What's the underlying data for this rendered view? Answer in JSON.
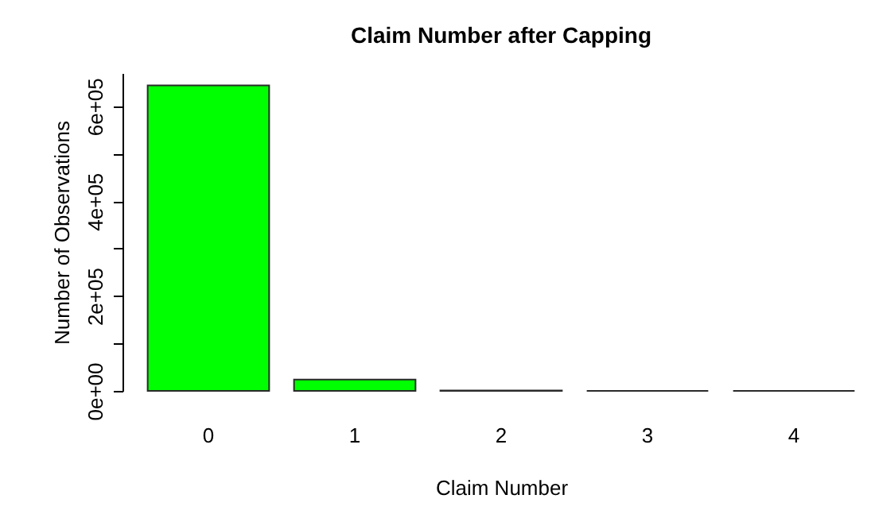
{
  "chart_data": {
    "type": "bar",
    "title": "Claim Number after Capping",
    "xlabel": "Claim Number",
    "ylabel": "Number of Observations",
    "categories": [
      "0",
      "1",
      "2",
      "3",
      "4"
    ],
    "values": [
      644000,
      24000,
      1000,
      0,
      0
    ],
    "color": "#00ff00",
    "ylim": [
      0,
      670000
    ],
    "yticks": [
      {
        "value": 0,
        "label": "0e+00"
      },
      {
        "value": 100000,
        "label": null
      },
      {
        "value": 200000,
        "label": "2e+05"
      },
      {
        "value": 300000,
        "label": null
      },
      {
        "value": 400000,
        "label": "4e+05"
      },
      {
        "value": 500000,
        "label": null
      },
      {
        "value": 600000,
        "label": "6e+05"
      }
    ],
    "grid": false
  }
}
